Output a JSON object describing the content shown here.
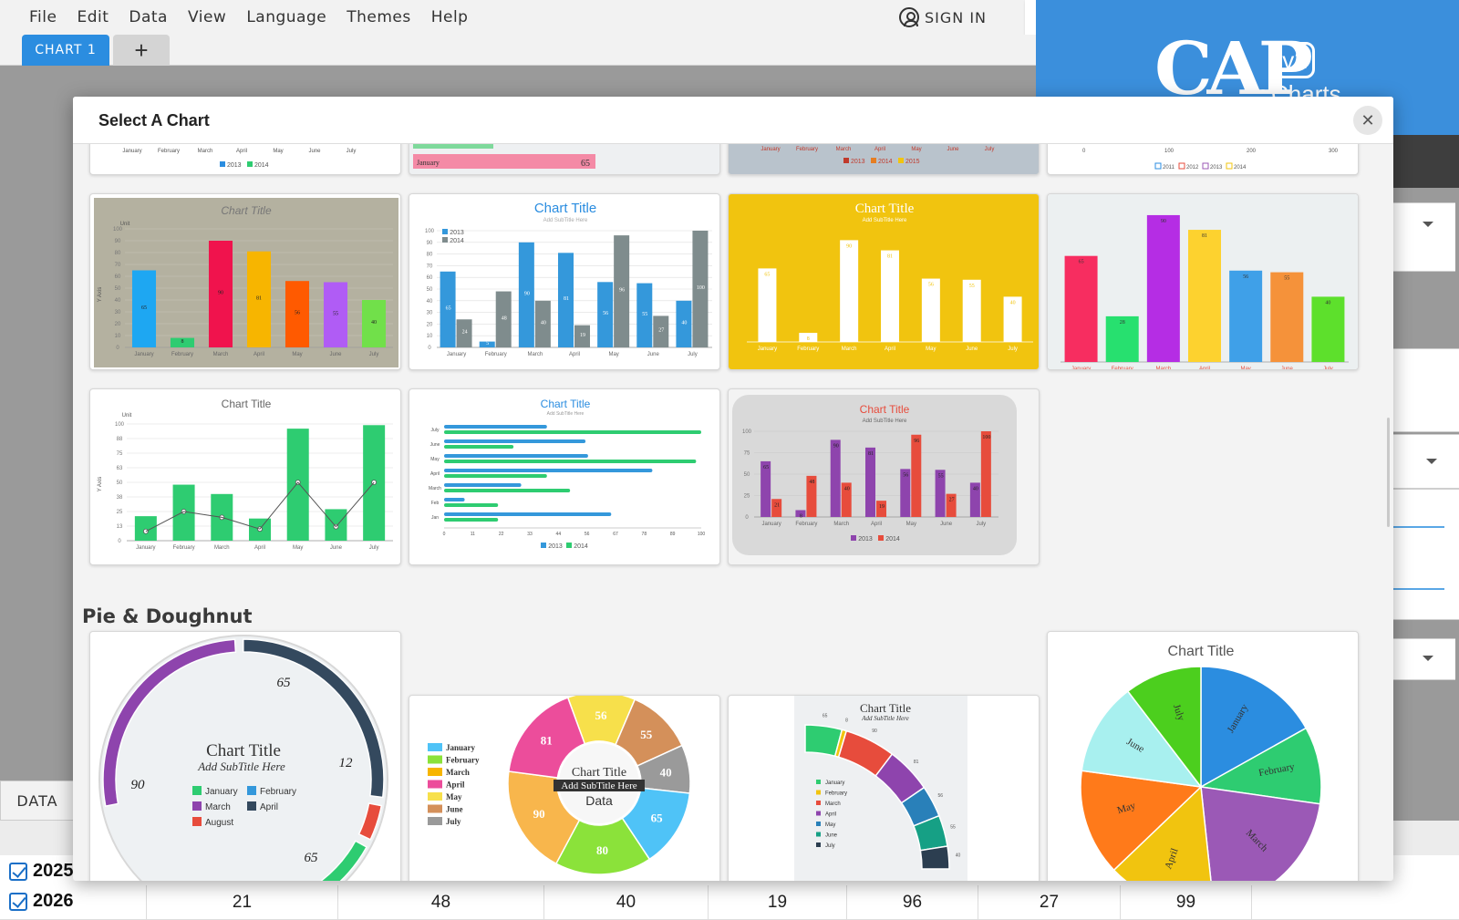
{
  "menu": {
    "items": [
      "File",
      "Edit",
      "Data",
      "View",
      "Language",
      "Themes",
      "Help"
    ],
    "sign_in": "SIGN IN"
  },
  "tabs": {
    "chart_tab": "CHART 1",
    "add_tab": "+"
  },
  "brand": {
    "logo_main": "CAP",
    "logo_version": "v2",
    "logo_sub": "Charts"
  },
  "modal": {
    "title": "Select A Chart",
    "close": "✕",
    "section_pie": "Pie & Doughnut"
  },
  "data_panel": {
    "tab_label": "DATA",
    "rows": [
      {
        "year": "2025",
        "values": []
      },
      {
        "year": "2026",
        "values": [
          "21",
          "48",
          "40",
          "19",
          "96",
          "27",
          "99"
        ]
      }
    ]
  },
  "thumbnails": {
    "months": [
      "January",
      "February",
      "March",
      "April",
      "May",
      "June",
      "July"
    ],
    "short_months": [
      "Jan",
      "Feb",
      "March",
      "April",
      "May",
      "June",
      "July"
    ],
    "chart_title": "Chart Title",
    "subtitle": "Add SubTitle Here",
    "y_axis": "Y Axis",
    "unit": "Unit",
    "data_label": "Data",
    "legend_2013_2014": [
      "2013",
      "2014"
    ],
    "legend_2013_2015": [
      "2013",
      "2014",
      "2015"
    ],
    "legend_2011_2014": [
      "2011",
      "2012",
      "2013",
      "2014"
    ],
    "card1_values": [
      65,
      8,
      90,
      81,
      56,
      55,
      40
    ],
    "card2_2013": [
      65,
      5,
      90,
      81,
      56,
      55,
      40
    ],
    "card2_2014": [
      24,
      48,
      40,
      19,
      96,
      27,
      100
    ],
    "card3_values": [
      65,
      8,
      90,
      81,
      56,
      55,
      40
    ],
    "card4_values": [
      65,
      28,
      90,
      81,
      56,
      55,
      40
    ],
    "card5_bars": [
      21,
      48,
      40,
      19,
      96,
      27,
      99
    ],
    "card5_line": [
      8,
      25,
      20,
      10,
      50,
      12,
      50
    ],
    "card6_2013": [
      40,
      55,
      56,
      81,
      30,
      8,
      65
    ],
    "card6_2014": [
      100,
      27,
      98,
      40,
      49,
      21,
      21
    ],
    "card7_2013": [
      65,
      8,
      90,
      81,
      56,
      55,
      40
    ],
    "card7_2014": [
      21,
      48,
      40,
      19,
      96,
      27,
      100
    ],
    "top_row_label": "January",
    "top_row_value": "65",
    "axis_ticks_top": [
      "0",
      "100",
      "200",
      "300"
    ],
    "donut1_labels": [
      "65",
      "12",
      "90",
      "65"
    ],
    "donut1_legend": [
      "January",
      "February",
      "March",
      "April",
      "August"
    ],
    "donut2_values": [
      "56",
      "55",
      "40",
      "65",
      "80",
      "90",
      "81"
    ],
    "donut2_legend": [
      "January",
      "February",
      "March",
      "April",
      "May",
      "June",
      "July"
    ],
    "semi_legend": [
      "January",
      "February",
      "March",
      "April",
      "May",
      "June",
      "July"
    ],
    "semi_values": [
      "65",
      "8",
      "90",
      "81",
      "56",
      "55",
      "40"
    ],
    "pie_labels": [
      "January",
      "February",
      "March",
      "April",
      "May",
      "June",
      "July"
    ]
  },
  "colors": {
    "accent": "#2b8de0",
    "brand_bg": "#3b8fdc"
  }
}
